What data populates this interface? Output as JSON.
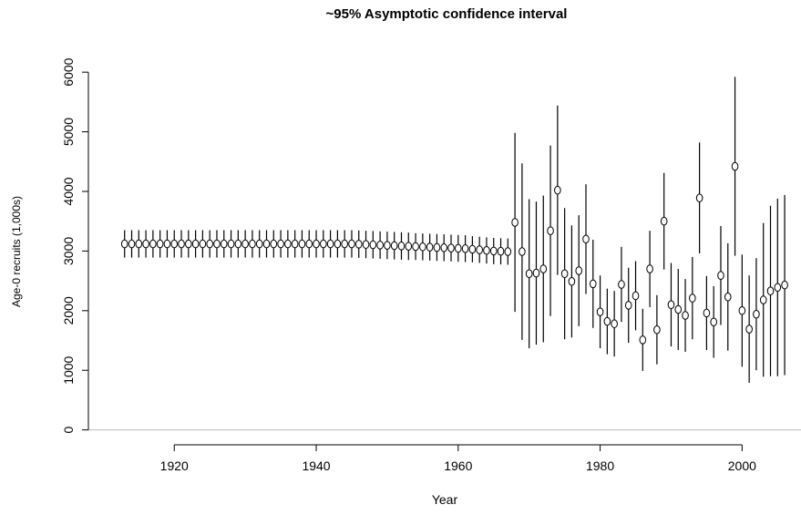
{
  "chart_data": {
    "type": "errorbar",
    "title": "~95% Asymptotic confidence interval",
    "x_label": "Year",
    "y_label": "Age-0 recruits (1,000s)",
    "x": [
      1913,
      1914,
      1915,
      1916,
      1917,
      1918,
      1919,
      1920,
      1921,
      1922,
      1923,
      1924,
      1925,
      1926,
      1927,
      1928,
      1929,
      1930,
      1931,
      1932,
      1933,
      1934,
      1935,
      1936,
      1937,
      1938,
      1939,
      1940,
      1941,
      1942,
      1943,
      1944,
      1945,
      1946,
      1947,
      1948,
      1949,
      1950,
      1951,
      1952,
      1953,
      1954,
      1955,
      1956,
      1957,
      1958,
      1959,
      1960,
      1961,
      1962,
      1963,
      1964,
      1965,
      1966,
      1967,
      1968,
      1969,
      1970,
      1971,
      1972,
      1973,
      1974,
      1975,
      1976,
      1977,
      1978,
      1979,
      1980,
      1981,
      1982,
      1983,
      1984,
      1985,
      1986,
      1987,
      1988,
      1989,
      1990,
      1991,
      1992,
      1993,
      1994,
      1995,
      1996,
      1997,
      1998,
      1999,
      2000,
      2001,
      2002,
      2003,
      2004,
      2005,
      2006
    ],
    "values": [
      3120,
      3120,
      3120,
      3120,
      3120,
      3120,
      3120,
      3120,
      3120,
      3120,
      3120,
      3120,
      3120,
      3120,
      3120,
      3120,
      3120,
      3120,
      3120,
      3120,
      3120,
      3120,
      3120,
      3120,
      3120,
      3120,
      3120,
      3120,
      3120,
      3120,
      3120,
      3120,
      3120,
      3115,
      3110,
      3105,
      3100,
      3095,
      3090,
      3085,
      3080,
      3075,
      3070,
      3065,
      3060,
      3055,
      3050,
      3045,
      3040,
      3030,
      3020,
      3010,
      3000,
      2995,
      2990,
      3480,
      2990,
      2620,
      2630,
      2700,
      3340,
      4020,
      2620,
      2490,
      2670,
      3200,
      2450,
      1980,
      1820,
      1780,
      2440,
      2090,
      2250,
      1510,
      2700,
      1680,
      3500,
      2100,
      2020,
      1920,
      2210,
      3890,
      1960,
      1810,
      2590,
      2230,
      4420,
      2000,
      1690,
      1940,
      2180,
      2330,
      2390,
      2430
    ],
    "errors": [
      230,
      230,
      230,
      230,
      230,
      230,
      230,
      230,
      230,
      230,
      230,
      230,
      230,
      230,
      230,
      230,
      230,
      230,
      230,
      230,
      230,
      230,
      230,
      230,
      230,
      230,
      230,
      230,
      230,
      230,
      230,
      230,
      230,
      230,
      230,
      230,
      230,
      230,
      230,
      230,
      230,
      225,
      225,
      225,
      225,
      225,
      225,
      225,
      225,
      220,
      220,
      220,
      220,
      220,
      220,
      1500,
      1480,
      1250,
      1200,
      1230,
      1430,
      1420,
      1100,
      940,
      930,
      920,
      740,
      610,
      550,
      550,
      630,
      630,
      580,
      520,
      640,
      580,
      810,
      700,
      680,
      610,
      690,
      930,
      620,
      600,
      830,
      900,
      1500,
      940,
      900,
      940,
      1290,
      1430,
      1490,
      1510
    ],
    "color": "#000000",
    "reference_line": 0,
    "xlim": [
      1907.9,
      2008.3
    ],
    "xticks": [
      1920,
      1940,
      1960,
      1980,
      2000
    ],
    "ylim": [
      -250,
      6400
    ],
    "yticks": [
      0,
      1000,
      2000,
      3000,
      4000,
      5000,
      6000
    ]
  }
}
